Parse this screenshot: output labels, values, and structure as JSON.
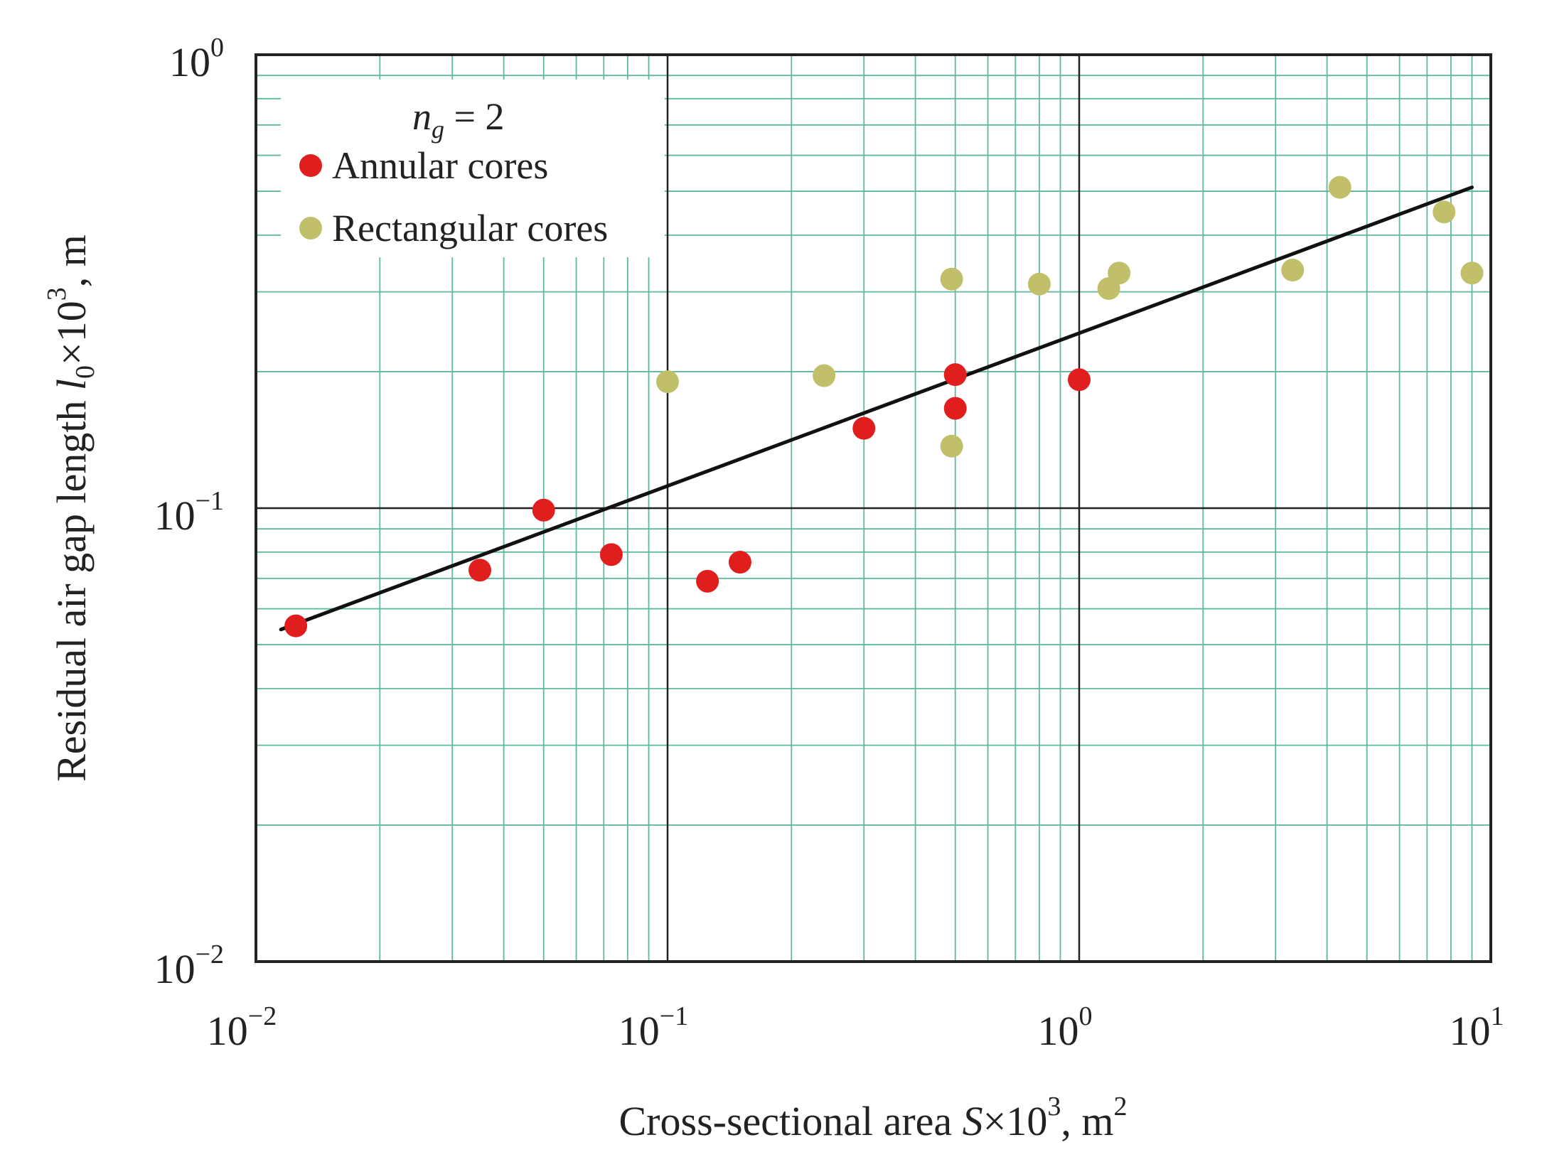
{
  "chart_data": {
    "type": "scatter",
    "scale": "log-log",
    "xlim": [
      0.01,
      10
    ],
    "ylim": [
      0.01,
      1
    ],
    "grid": true,
    "colors": {
      "grid_minor": "#5fb8a0",
      "grid_major": "#222222",
      "frame": "#222222",
      "fit_line": "#111111",
      "annular": "#e01e1e",
      "rectangular": "#c2bf6a"
    },
    "x_ticks": [
      {
        "value": 0.01,
        "base": "10",
        "exp": "−2"
      },
      {
        "value": 0.1,
        "base": "10",
        "exp": "−1"
      },
      {
        "value": 1,
        "base": "10",
        "exp": "0"
      },
      {
        "value": 10,
        "base": "10",
        "exp": "1"
      }
    ],
    "y_ticks": [
      {
        "value": 0.01,
        "base": "10",
        "exp": "−2"
      },
      {
        "value": 0.1,
        "base": "10",
        "exp": "−1"
      },
      {
        "value": 1,
        "base": "10",
        "exp": "0"
      }
    ],
    "xlabel": {
      "prefix": "Cross-sectional area ",
      "var": "S",
      "times": "×10",
      "exp": "3",
      "unit": ", m",
      "unit_exp": "2"
    },
    "ylabel": {
      "prefix": "Residual air gap length ",
      "var": "l",
      "sub": "0",
      "times": "×10",
      "exp": "3",
      "unit": ", m"
    },
    "legend": {
      "position": "top-left",
      "title_var": "n",
      "title_sub": "g",
      "title_rest": " = 2",
      "entries": [
        "Annular cores",
        "Rectangular cores"
      ]
    },
    "series": [
      {
        "name": "Annular cores",
        "color": "#e01e1e",
        "points": [
          {
            "x": 0.0125,
            "y": 0.055
          },
          {
            "x": 0.035,
            "y": 0.073
          },
          {
            "x": 0.05,
            "y": 0.099
          },
          {
            "x": 0.073,
            "y": 0.079
          },
          {
            "x": 0.125,
            "y": 0.069
          },
          {
            "x": 0.15,
            "y": 0.076
          },
          {
            "x": 0.3,
            "y": 0.15
          },
          {
            "x": 0.5,
            "y": 0.197
          },
          {
            "x": 0.5,
            "y": 0.166
          },
          {
            "x": 1.0,
            "y": 0.192
          }
        ]
      },
      {
        "name": "Rectangular cores",
        "color": "#c2bf6a",
        "points": [
          {
            "x": 0.1,
            "y": 0.19
          },
          {
            "x": 0.24,
            "y": 0.196
          },
          {
            "x": 0.49,
            "y": 0.32
          },
          {
            "x": 0.49,
            "y": 0.137
          },
          {
            "x": 0.8,
            "y": 0.312
          },
          {
            "x": 1.18,
            "y": 0.305
          },
          {
            "x": 1.25,
            "y": 0.33
          },
          {
            "x": 3.3,
            "y": 0.335
          },
          {
            "x": 4.3,
            "y": 0.51
          },
          {
            "x": 7.7,
            "y": 0.45
          },
          {
            "x": 9.0,
            "y": 0.33
          }
        ]
      }
    ],
    "fit_line": {
      "name": "fit",
      "from": {
        "x": 0.0115,
        "y": 0.054
      },
      "to": {
        "x": 9.0,
        "y": 0.51
      }
    }
  }
}
